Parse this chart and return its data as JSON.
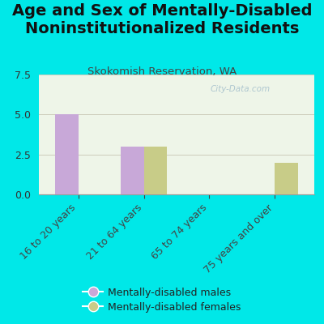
{
  "title": "Age and Sex of Mentally-Disabled\nNoninstitutionalized Residents",
  "subtitle": "Skokomish Reservation, WA",
  "categories": [
    "16 to 20 years",
    "21 to 64 years",
    "65 to 74 years",
    "75 years and over"
  ],
  "males": [
    5,
    3,
    0,
    0
  ],
  "females": [
    0,
    3,
    0,
    2
  ],
  "male_color": "#c8a8d8",
  "female_color": "#c8cc88",
  "background_color": "#00e8e8",
  "plot_bg": "#eef5e8",
  "ylim": [
    0,
    7.5
  ],
  "yticks": [
    0,
    2.5,
    5,
    7.5
  ],
  "bar_width": 0.35,
  "watermark": "City-Data.com",
  "legend_male": "Mentally-disabled males",
  "legend_female": "Mentally-disabled females",
  "title_fontsize": 14,
  "subtitle_fontsize": 9.5,
  "tick_fontsize": 9,
  "grid_color": "#ccccbb"
}
